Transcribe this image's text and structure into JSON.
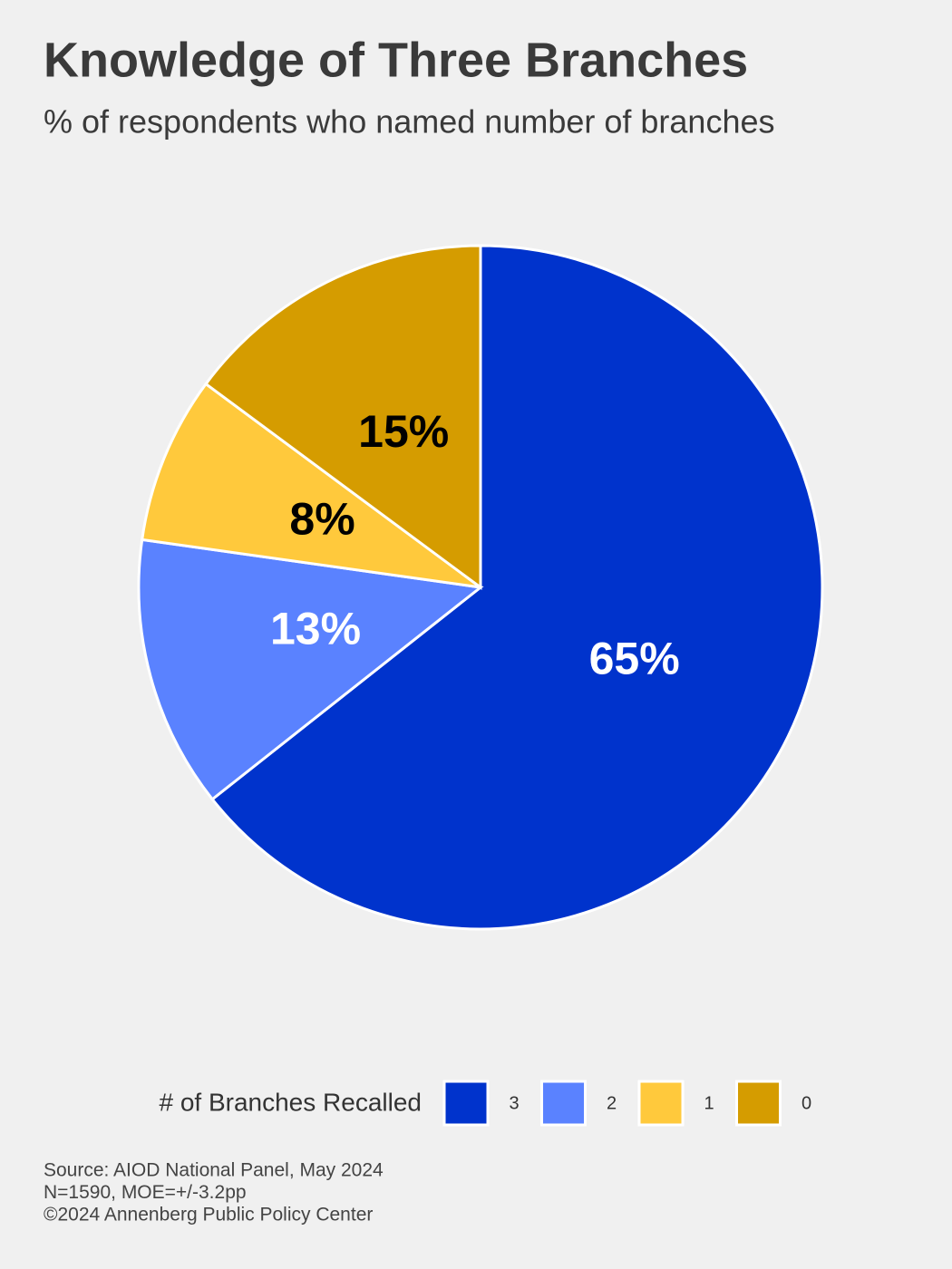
{
  "chart_data": {
    "type": "pie",
    "title": "Knowledge of Three Branches",
    "subtitle": "% of respondents who named number of branches",
    "categories": [
      "3",
      "2",
      "1",
      "0"
    ],
    "values": [
      65,
      13,
      8,
      15
    ],
    "value_labels": [
      "65%",
      "13%",
      "8%",
      "15%"
    ],
    "colors": [
      "#0033cc",
      "#5a82ff",
      "#ffc93c",
      "#d59c00"
    ],
    "legend_title": "# of Branches Recalled",
    "legend_position": "bottom",
    "source": [
      "Source: AIOD National Panel, May 2024",
      "N=1590, MOE=+/-3.2pp",
      "©2024 Annenberg Public Policy Center"
    ]
  }
}
